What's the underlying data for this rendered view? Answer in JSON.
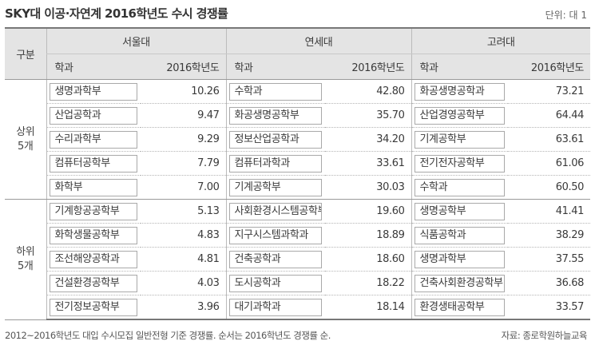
{
  "title": "SKY대 이공·자연계 2016학년도 수시 경쟁률",
  "unit": "단위: 대 1",
  "header": {
    "category": "구분",
    "universities": [
      "서울대",
      "연세대",
      "고려대"
    ],
    "dept_label": "학과",
    "score_label": "2016학년도"
  },
  "groups": [
    {
      "label_line1": "상위",
      "label_line2": "5개",
      "rows": [
        [
          {
            "dept": "생명과학부",
            "score": "10.26"
          },
          {
            "dept": "수학과",
            "score": "42.80"
          },
          {
            "dept": "화공생명공학과",
            "score": "73.21"
          }
        ],
        [
          {
            "dept": "산업공학과",
            "score": "9.47"
          },
          {
            "dept": "화공생명공학부",
            "score": "35.70"
          },
          {
            "dept": "산업경영공학부",
            "score": "64.44"
          }
        ],
        [
          {
            "dept": "수리과학부",
            "score": "9.29"
          },
          {
            "dept": "정보산업공학과",
            "score": "34.20"
          },
          {
            "dept": "기계공학부",
            "score": "63.61"
          }
        ],
        [
          {
            "dept": "컴퓨터공학부",
            "score": "7.79"
          },
          {
            "dept": "컴퓨터과학과",
            "score": "33.61"
          },
          {
            "dept": "전기전자공학부",
            "score": "61.06"
          }
        ],
        [
          {
            "dept": "화학부",
            "score": "7.00"
          },
          {
            "dept": "기계공학부",
            "score": "30.03"
          },
          {
            "dept": "수학과",
            "score": "60.50"
          }
        ]
      ]
    },
    {
      "label_line1": "하위",
      "label_line2": "5개",
      "rows": [
        [
          {
            "dept": "기계항공공학부",
            "score": "5.13"
          },
          {
            "dept": "사회환경시스템공학부",
            "score": "19.60"
          },
          {
            "dept": "생명공학부",
            "score": "41.41"
          }
        ],
        [
          {
            "dept": "화학생물공학부",
            "score": "4.83"
          },
          {
            "dept": "지구시스템과학과",
            "score": "18.89"
          },
          {
            "dept": "식품공학과",
            "score": "38.29"
          }
        ],
        [
          {
            "dept": "조선해양공학과",
            "score": "4.81"
          },
          {
            "dept": "건축공학과",
            "score": "18.60"
          },
          {
            "dept": "생명과학부",
            "score": "37.55"
          }
        ],
        [
          {
            "dept": "건설환경공학부",
            "score": "4.03"
          },
          {
            "dept": "도시공학과",
            "score": "18.22"
          },
          {
            "dept": "건축사회환경공학부",
            "score": "36.68"
          }
        ],
        [
          {
            "dept": "전기정보공학부",
            "score": "3.96"
          },
          {
            "dept": "대기과학과",
            "score": "18.14"
          },
          {
            "dept": "환경생태공학부",
            "score": "33.57"
          }
        ]
      ]
    }
  ],
  "footnote": "2012~2016학년도 대입 수시모집 일반전형 기준 경쟁률. 순서는 2016학년도 경쟁률 순.",
  "source": "자료: 종로학원하늘교육"
}
